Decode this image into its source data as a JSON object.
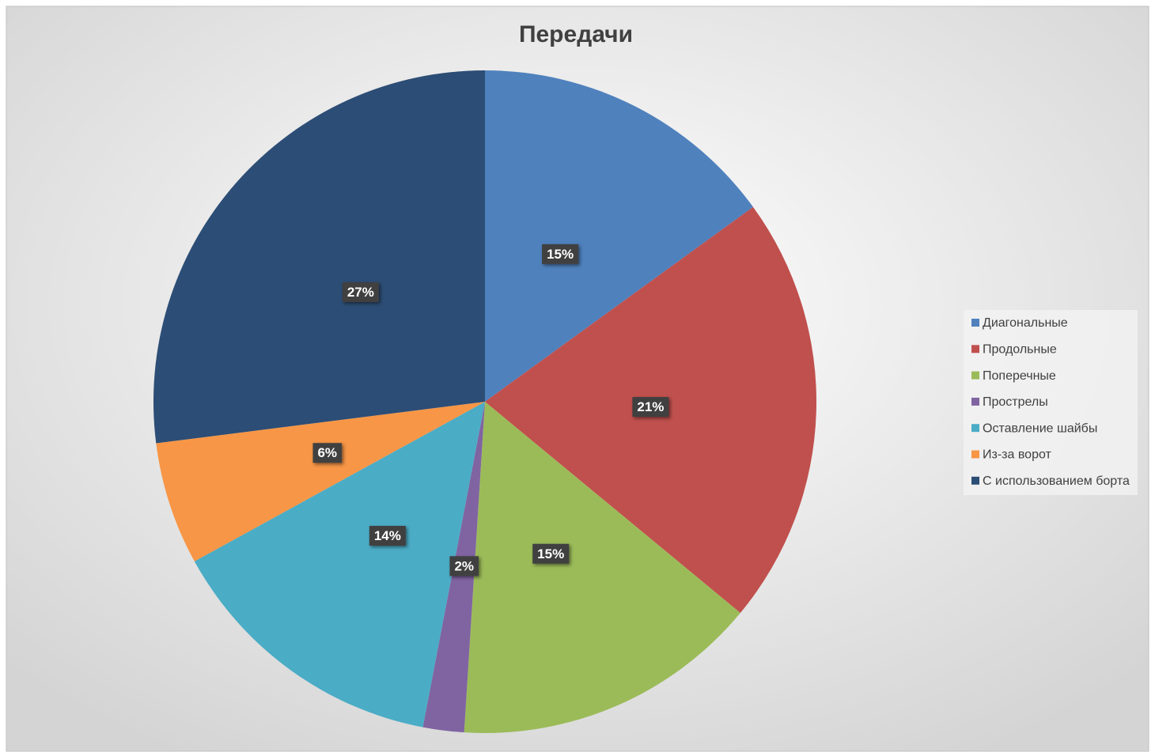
{
  "chart_data": {
    "type": "pie",
    "title": "Передачи",
    "categories": [
      "Диагональные",
      "Продольные",
      "Поперечные",
      "Прострелы",
      "Оставление шайбы",
      "Из-за ворот",
      "С использованием борта"
    ],
    "values": [
      15,
      21,
      15,
      2,
      14,
      6,
      27
    ],
    "value_labels": [
      "15%",
      "21%",
      "15%",
      "2%",
      "14%",
      "6%",
      "27%"
    ],
    "colors": [
      "#4f81bd",
      "#c0504d",
      "#9bbb59",
      "#8064a2",
      "#4bacc6",
      "#f79646",
      "#2c4d75"
    ],
    "legend": "right"
  }
}
